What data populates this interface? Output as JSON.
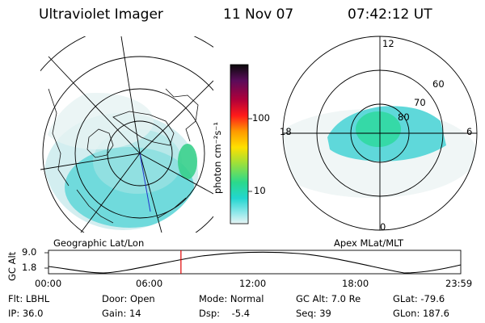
{
  "header": {
    "instrument": "Ultraviolet Imager",
    "date": "11 Nov 07",
    "time": "07:42:12 UT"
  },
  "geo_panel": {
    "label": "Geographic Lat/Lon"
  },
  "apex_panel": {
    "label": "Apex MLat/MLT",
    "mlt_labels": {
      "top": "12",
      "right": "6",
      "bottom": "0",
      "left": "18"
    },
    "lat_labels": [
      "60",
      "70",
      "80"
    ]
  },
  "colorbar": {
    "unit_label": "photon cm⁻²s⁻¹",
    "ticks": [
      "100",
      "10"
    ],
    "colors": [
      "#0a0a0a",
      "#5a0c5a",
      "#b0003a",
      "#ff1a1a",
      "#ff9a00",
      "#ffe000",
      "#9ee03a",
      "#2bd98c",
      "#22d6cf",
      "#8ee8ea",
      "#e8f4f4"
    ]
  },
  "timeline": {
    "axis_label": "GC Alt",
    "y_ticks": [
      "9.0",
      "1.8"
    ],
    "x_ticks": [
      "00:00",
      "06:00",
      "12:00",
      "18:00",
      "23:59"
    ],
    "current_time_fraction": 0.3213,
    "marker_color": "#e00000"
  },
  "info": {
    "filter": "Flt: LBHL",
    "ip": "IP: 36.0",
    "door": "Door: Open",
    "gain": "Gain: 14",
    "mode": "Mode: Normal",
    "dsp": "Dsp:    -5.4",
    "gc_alt": "GC Alt: 7.0 Re",
    "seq": "Seq: 39",
    "glat": "GLat: -79.6",
    "glon": "GLon: 187.6"
  }
}
